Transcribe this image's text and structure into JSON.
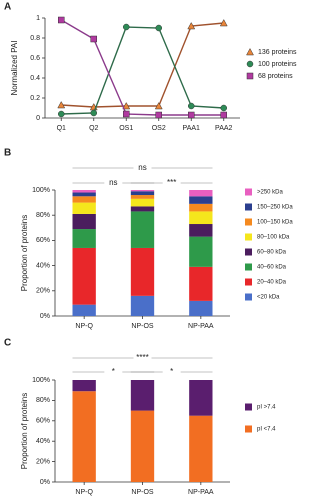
{
  "chart_data": [
    {
      "type": "line",
      "panel": "A",
      "ylabel": "Normalized PAI",
      "categories": [
        "Q1",
        "Q2",
        "OS1",
        "OS2",
        "PAA1",
        "PAA2"
      ],
      "ylim": [
        0,
        1
      ],
      "yticks": [
        0,
        0.2,
        0.4,
        0.6,
        0.8,
        1
      ],
      "series": [
        {
          "name": "136 proteins",
          "color": "#a0522d",
          "marker_color": "#e8853a",
          "marker": "triangle",
          "values": [
            0.13,
            0.11,
            0.12,
            0.12,
            0.92,
            0.95
          ]
        },
        {
          "name": "100 proteins",
          "color": "#2e6b4a",
          "marker_color": "#2e8b57",
          "marker": "circle",
          "values": [
            0.04,
            0.05,
            0.91,
            0.9,
            0.12,
            0.1
          ]
        },
        {
          "name": "68 proteins",
          "color": "#8b3a8b",
          "marker_color": "#b03aa0",
          "marker": "square",
          "values": [
            0.98,
            0.79,
            0.04,
            0.03,
            0.03,
            0.03
          ]
        }
      ]
    },
    {
      "type": "stacked-bar",
      "panel": "B",
      "ylabel": "Proportion of proteins",
      "categories": [
        "NP-Q",
        "NP-OS",
        "NP-PAA"
      ],
      "ylim": [
        0,
        100
      ],
      "yticks": [
        {
          "value": 0,
          "label": "0%"
        },
        {
          "value": 20,
          "label": "20%"
        },
        {
          "value": 40,
          "label": "40%"
        },
        {
          "value": 60,
          "label": "60%"
        },
        {
          "value": 80,
          "label": "80%"
        },
        {
          "value": 100,
          "label": "100%"
        }
      ],
      "annotations": [
        "ns",
        "ns",
        "***"
      ],
      "series": [
        {
          "name": "<20 kDa",
          "color": "#4a6fc9",
          "values": [
            9,
            16,
            12
          ]
        },
        {
          "name": "20–40 kDa",
          "color": "#e8272a",
          "values": [
            45,
            38,
            27
          ]
        },
        {
          "name": "40–60 kDa",
          "color": "#2e9a4a",
          "values": [
            15,
            29,
            24
          ]
        },
        {
          "name": "60–80 kDa",
          "color": "#4b1d5e",
          "values": [
            12,
            4,
            10
          ]
        },
        {
          "name": "80–100 kDa",
          "color": "#f5e61c",
          "values": [
            9,
            6,
            10
          ]
        },
        {
          "name": "100–150 kDa",
          "color": "#f58a1f",
          "values": [
            5,
            3,
            6
          ]
        },
        {
          "name": "150–250 kDa",
          "color": "#2b3f8f",
          "values": [
            3,
            3,
            6
          ]
        },
        {
          "name": ">250 kDa",
          "color": "#e85fc0",
          "values": [
            2,
            1,
            5
          ]
        }
      ]
    },
    {
      "type": "stacked-bar",
      "panel": "C",
      "ylabel": "Proportion of proteins",
      "categories": [
        "NP-Q",
        "NP-OS",
        "NP-PAA"
      ],
      "ylim": [
        0,
        100
      ],
      "yticks": [
        {
          "value": 0,
          "label": "0%"
        },
        {
          "value": 20,
          "label": "20%"
        },
        {
          "value": 40,
          "label": "40%"
        },
        {
          "value": 60,
          "label": "60%"
        },
        {
          "value": 80,
          "label": "80%"
        },
        {
          "value": 100,
          "label": "100%"
        }
      ],
      "annotations": [
        "****",
        "*",
        "*"
      ],
      "series": [
        {
          "name": "pI <7.4",
          "color": "#f26e22",
          "values": [
            89,
            70,
            65
          ]
        },
        {
          "name": "pI >7.4",
          "color": "#5a1e6e",
          "values": [
            11,
            30,
            35
          ]
        }
      ]
    }
  ]
}
